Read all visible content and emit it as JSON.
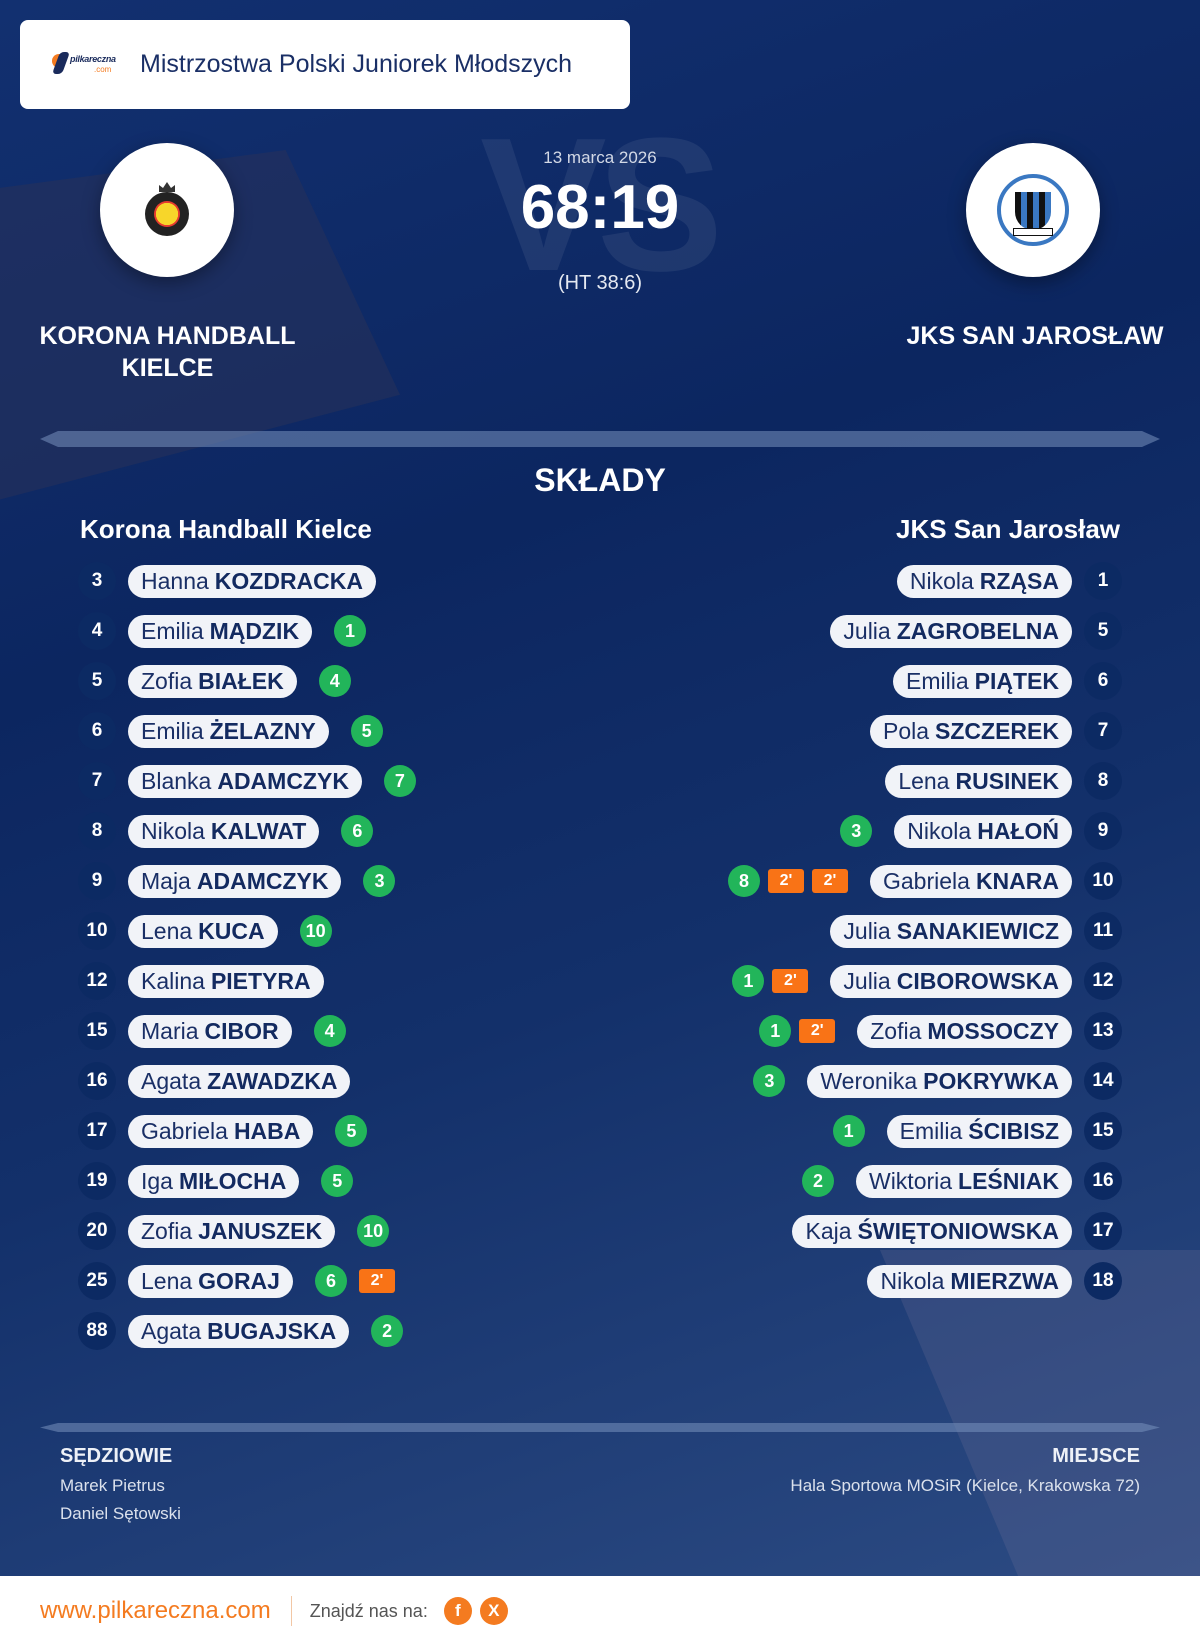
{
  "header": {
    "logo_text": "pilkareczna",
    "logo_suffix": ".com",
    "title": "Mistrzostwa Polski Juniorek Młodszych"
  },
  "match": {
    "date": "13 marca 2026",
    "score": "68:19",
    "halftime": "(HT 38:6)",
    "vs_watermark": "VS"
  },
  "home_team": {
    "name": "KORONA HANDBALL KIELCE",
    "roster_title": "Korona Handball Kielce",
    "players": [
      {
        "number": "3",
        "first": "Hanna",
        "last": "KOZDRACKA",
        "goals": null,
        "penalties": []
      },
      {
        "number": "4",
        "first": "Emilia",
        "last": "MĄDZIK",
        "goals": "1",
        "penalties": []
      },
      {
        "number": "5",
        "first": "Zofia",
        "last": "BIAŁEK",
        "goals": "4",
        "penalties": []
      },
      {
        "number": "6",
        "first": "Emilia",
        "last": "ŻELAZNY",
        "goals": "5",
        "penalties": []
      },
      {
        "number": "7",
        "first": "Blanka",
        "last": "ADAMCZYK",
        "goals": "7",
        "penalties": []
      },
      {
        "number": "8",
        "first": "Nikola",
        "last": "KALWAT",
        "goals": "6",
        "penalties": []
      },
      {
        "number": "9",
        "first": "Maja",
        "last": "ADAMCZYK",
        "goals": "3",
        "penalties": []
      },
      {
        "number": "10",
        "first": "Lena",
        "last": "KUCA",
        "goals": "10",
        "penalties": []
      },
      {
        "number": "12",
        "first": "Kalina",
        "last": "PIETYRA",
        "goals": null,
        "penalties": []
      },
      {
        "number": "15",
        "first": "Maria",
        "last": "CIBOR",
        "goals": "4",
        "penalties": []
      },
      {
        "number": "16",
        "first": "Agata",
        "last": "ZAWADZKA",
        "goals": null,
        "penalties": []
      },
      {
        "number": "17",
        "first": "Gabriela",
        "last": "HABA",
        "goals": "5",
        "penalties": []
      },
      {
        "number": "19",
        "first": "Iga",
        "last": "MIŁOCHA",
        "goals": "5",
        "penalties": []
      },
      {
        "number": "20",
        "first": "Zofia",
        "last": "JANUSZEK",
        "goals": "10",
        "penalties": []
      },
      {
        "number": "25",
        "first": "Lena",
        "last": "GORAJ",
        "goals": "6",
        "penalties": [
          "2'"
        ]
      },
      {
        "number": "88",
        "first": "Agata",
        "last": "BUGAJSKA",
        "goals": "2",
        "penalties": []
      }
    ]
  },
  "away_team": {
    "name": "JKS SAN JAROSŁAW",
    "roster_title": "JKS San Jarosław",
    "players": [
      {
        "number": "1",
        "first": "Nikola",
        "last": "RZĄSA",
        "goals": null,
        "penalties": []
      },
      {
        "number": "5",
        "first": "Julia",
        "last": "ZAGROBELNA",
        "goals": null,
        "penalties": []
      },
      {
        "number": "6",
        "first": "Emilia",
        "last": "PIĄTEK",
        "goals": null,
        "penalties": []
      },
      {
        "number": "7",
        "first": "Pola",
        "last": "SZCZEREK",
        "goals": null,
        "penalties": []
      },
      {
        "number": "8",
        "first": "Lena",
        "last": "RUSINEK",
        "goals": null,
        "penalties": []
      },
      {
        "number": "9",
        "first": "Nikola",
        "last": "HAŁOŃ",
        "goals": "3",
        "penalties": []
      },
      {
        "number": "10",
        "first": "Gabriela",
        "last": "KNARA",
        "goals": "8",
        "penalties": [
          "2'",
          "2'"
        ]
      },
      {
        "number": "11",
        "first": "Julia",
        "last": "SANAKIEWICZ",
        "goals": null,
        "penalties": []
      },
      {
        "number": "12",
        "first": "Julia",
        "last": "CIBOROWSKA",
        "goals": "1",
        "penalties": [
          "2'"
        ]
      },
      {
        "number": "13",
        "first": "Zofia",
        "last": "MOSSOCZY",
        "goals": "1",
        "penalties": [
          "2'"
        ]
      },
      {
        "number": "14",
        "first": "Weronika",
        "last": "POKRYWKA",
        "goals": "3",
        "penalties": []
      },
      {
        "number": "15",
        "first": "Emilia",
        "last": "ŚCIBISZ",
        "goals": "1",
        "penalties": []
      },
      {
        "number": "16",
        "first": "Wiktoria",
        "last": "LEŚNIAK",
        "goals": "2",
        "penalties": []
      },
      {
        "number": "17",
        "first": "Kaja",
        "last": "ŚWIĘTONIOWSKA",
        "goals": null,
        "penalties": []
      },
      {
        "number": "18",
        "first": "Nikola",
        "last": "MIERZWA",
        "goals": null,
        "penalties": []
      }
    ]
  },
  "section_title": "SKŁADY",
  "referees": {
    "label": "SĘDZIOWIE",
    "names": [
      "Marek Pietrus",
      "Daniel Sętowski"
    ]
  },
  "venue": {
    "label": "MIEJSCE",
    "text": "Hala Sportowa MOSiR (Kielce, Krakowska 72)"
  },
  "footer": {
    "site": "www.pilkareczna.com",
    "find_us": "Znajdź nas na:",
    "social": [
      {
        "name": "facebook",
        "glyph": "f"
      },
      {
        "name": "x",
        "glyph": "X"
      }
    ]
  },
  "colors": {
    "background": "#0c2660",
    "goal_badge": "#22b55a",
    "penalty_badge": "#f97316",
    "brand_orange": "#f47b20",
    "pill": "#f1f3f8"
  }
}
